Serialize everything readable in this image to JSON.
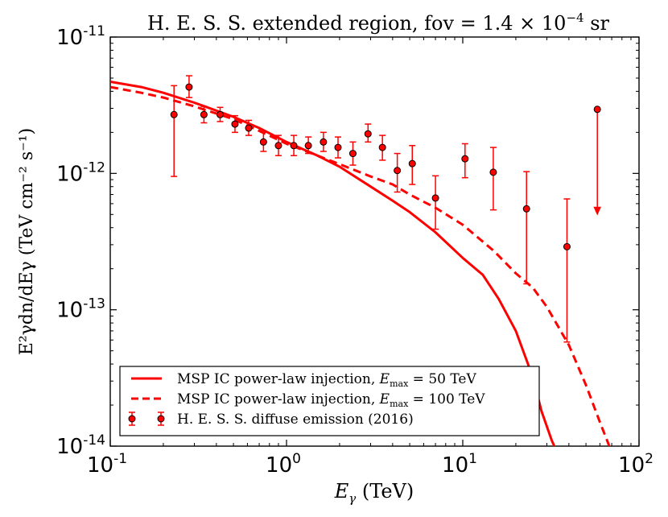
{
  "chart_data": {
    "type": "line",
    "title": "H. E. S. S.  extended region,  fov = 1.4 × 10",
    "title_exponent": "−4",
    "title_unit": " sr",
    "xlabel": {
      "symbol": "E",
      "subscript": "γ",
      "unit": " (TeV)"
    },
    "ylabel": {
      "text": "E²γdn/dEγ (TeV cm⁻² s⁻¹)"
    },
    "x_scale": "log",
    "y_scale": "log",
    "xlim": [
      0.1,
      100
    ],
    "ylim": [
      1e-14,
      1e-11
    ],
    "x_ticks": [
      {
        "value": 0.1,
        "base": "10",
        "exp": "-1"
      },
      {
        "value": 1,
        "base": "10",
        "exp": "0"
      },
      {
        "value": 10,
        "base": "10",
        "exp": "1"
      },
      {
        "value": 100,
        "base": "10",
        "exp": "2"
      }
    ],
    "y_ticks": [
      {
        "value": 1e-14,
        "base": "10",
        "exp": "-14"
      },
      {
        "value": 1e-13,
        "base": "10",
        "exp": "-13"
      },
      {
        "value": 1e-12,
        "base": "10",
        "exp": "-12"
      },
      {
        "value": 1e-11,
        "base": "10",
        "exp": "-11"
      }
    ],
    "color": "#ff0000",
    "series": [
      {
        "name": "MSP IC power-law injection,  E_max = 50 TeV",
        "label_prefix": "MSP IC power-law injection,  ",
        "label_symbol": "E",
        "label_sub": "max",
        "label_suffix": " = 50 TeV",
        "style": "solid",
        "x": [
          0.1,
          0.15,
          0.2,
          0.3,
          0.5,
          0.7,
          1.0,
          1.5,
          2.0,
          3.0,
          4.0,
          5.0,
          7.0,
          10,
          13,
          16,
          20,
          25,
          28,
          32,
          35
        ],
        "y": [
          4.7e-12,
          4.3e-12,
          3.9e-12,
          3.3e-12,
          2.6e-12,
          2.15e-12,
          1.7e-12,
          1.35e-12,
          1.12e-12,
          8e-13,
          6.3e-13,
          5.2e-13,
          3.7e-13,
          2.4e-13,
          1.8e-13,
          1.2e-13,
          7e-14,
          3.2e-14,
          1.8e-14,
          1.1e-14,
          8.5e-15
        ]
      },
      {
        "name": "MSP IC power-law injection,  E_max = 100 TeV",
        "label_prefix": "MSP IC power-law injection,  ",
        "label_symbol": "E",
        "label_sub": "max",
        "label_suffix": " = 100 TeV",
        "style": "dashed",
        "x": [
          0.1,
          0.15,
          0.2,
          0.3,
          0.5,
          0.7,
          1.0,
          1.5,
          2.0,
          3.0,
          4.0,
          5.0,
          7.0,
          10,
          15,
          20,
          25,
          30,
          40,
          50,
          60,
          70
        ],
        "y": [
          4.3e-12,
          3.9e-12,
          3.6e-12,
          3.1e-12,
          2.5e-12,
          2.05e-12,
          1.65e-12,
          1.35e-12,
          1.17e-12,
          9.5e-13,
          8.3e-13,
          7e-13,
          5.6e-13,
          4.2e-13,
          2.7e-13,
          1.85e-13,
          1.45e-13,
          1.05e-13,
          5.5e-14,
          2.8e-14,
          1.5e-14,
          9e-15
        ]
      }
    ],
    "data_points": {
      "name": "H. E. S. S.  diffuse emission (2016)",
      "x": [
        0.23,
        0.28,
        0.34,
        0.42,
        0.51,
        0.61,
        0.74,
        0.9,
        1.1,
        1.33,
        1.62,
        1.96,
        2.38,
        2.9,
        3.5,
        4.25,
        5.17,
        7.0,
        10.3,
        14.9,
        23.0,
        39.0
      ],
      "y": [
        2.7e-12,
        4.3e-12,
        2.7e-12,
        2.7e-12,
        2.3e-12,
        2.15e-12,
        1.7e-12,
        1.6e-12,
        1.6e-12,
        1.6e-12,
        1.7e-12,
        1.55e-12,
        1.4e-12,
        1.95e-12,
        1.55e-12,
        1.05e-12,
        1.18e-12,
        6.6e-13,
        1.28e-12,
        1.02e-12,
        5.5e-13,
        2.9e-13
      ],
      "y_low": [
        9.5e-13,
        3.6e-12,
        2.35e-12,
        2.4e-12,
        2e-12,
        1.9e-12,
        1.45e-12,
        1.35e-12,
        1.35e-12,
        1.4e-12,
        1.45e-12,
        1.3e-12,
        1.15e-12,
        1.7e-12,
        1.25e-12,
        7.3e-13,
        8.3e-13,
        3.9e-13,
        9.3e-13,
        5.4e-13,
        1.55e-13,
        5.8e-14
      ],
      "y_high": [
        4.4e-12,
        5.2e-12,
        3.1e-12,
        3.05e-12,
        2.65e-12,
        2.45e-12,
        2e-12,
        1.9e-12,
        1.9e-12,
        1.85e-12,
        2e-12,
        1.85e-12,
        1.7e-12,
        2.3e-12,
        1.9e-12,
        1.4e-12,
        1.6e-12,
        9.6e-13,
        1.65e-12,
        1.55e-12,
        1.03e-12,
        6.5e-13
      ]
    },
    "upper_limit": {
      "x": 58,
      "y": 2.95e-12,
      "arrow_to": 5e-13
    },
    "legend_position": "lower-left"
  }
}
